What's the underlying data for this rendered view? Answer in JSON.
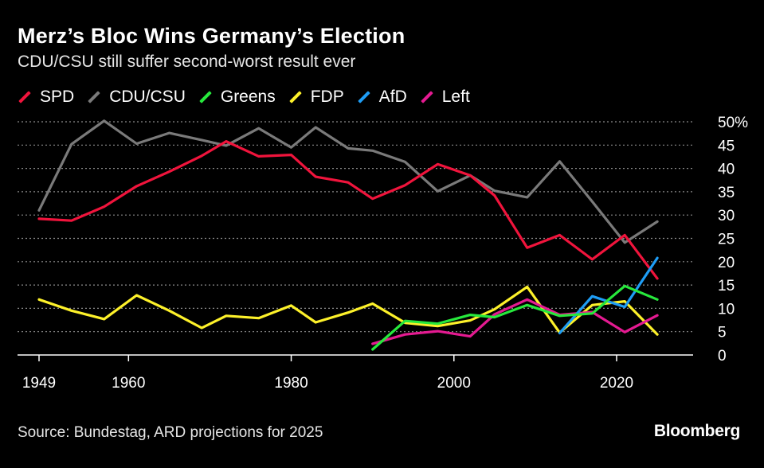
{
  "header": {
    "title": "Merz’s Bloc Wins Germany’s Election",
    "subtitle": "CDU/CSU still suffer second-worst result ever"
  },
  "footer": {
    "source": "Source: Bundestag, ARD projections for 2025",
    "brand": "Bloomberg"
  },
  "colors": {
    "background": "#000000",
    "grid": "#8a8a8a",
    "SPD": "#f0143c",
    "CDU/CSU": "#7a7a7a",
    "Greens": "#27e83c",
    "FDP": "#fdf12a",
    "AfD": "#1e9df5",
    "Left": "#e41a91"
  },
  "chart_data": {
    "type": "line",
    "title": "Merz’s Bloc Wins Germany’s Election",
    "subtitle": "CDU/CSU still suffer second-worst result ever",
    "xlabel": "",
    "ylabel": "",
    "xlim": [
      1949,
      2027
    ],
    "ylim": [
      0,
      50
    ],
    "x_ticks": [
      "1949",
      "1960",
      "1980",
      "2000",
      "2020"
    ],
    "y_ticks": [
      "0",
      "5",
      "10",
      "15",
      "20",
      "25",
      "30",
      "35",
      "40",
      "45",
      "50%"
    ],
    "grid": true,
    "legend_position": "top-left",
    "series": [
      {
        "name": "SPD",
        "color": "#f0143c",
        "points": [
          [
            1949,
            29.2
          ],
          [
            1953,
            28.8
          ],
          [
            1957,
            31.8
          ],
          [
            1961,
            36.2
          ],
          [
            1965,
            39.3
          ],
          [
            1969,
            42.7
          ],
          [
            1972,
            45.8
          ],
          [
            1976,
            42.6
          ],
          [
            1980,
            42.9
          ],
          [
            1983,
            38.2
          ],
          [
            1987,
            37.0
          ],
          [
            1990,
            33.5
          ],
          [
            1994,
            36.4
          ],
          [
            1998,
            40.9
          ],
          [
            2002,
            38.5
          ],
          [
            2005,
            34.2
          ],
          [
            2009,
            23.0
          ],
          [
            2013,
            25.7
          ],
          [
            2017,
            20.5
          ],
          [
            2021,
            25.7
          ],
          [
            2025,
            16.4
          ]
        ]
      },
      {
        "name": "CDU/CSU",
        "color": "#7a7a7a",
        "points": [
          [
            1949,
            31.0
          ],
          [
            1953,
            45.2
          ],
          [
            1957,
            50.2
          ],
          [
            1961,
            45.3
          ],
          [
            1965,
            47.6
          ],
          [
            1969,
            46.1
          ],
          [
            1972,
            44.9
          ],
          [
            1976,
            48.6
          ],
          [
            1980,
            44.5
          ],
          [
            1983,
            48.8
          ],
          [
            1987,
            44.3
          ],
          [
            1990,
            43.8
          ],
          [
            1994,
            41.4
          ],
          [
            1998,
            35.1
          ],
          [
            2002,
            38.5
          ],
          [
            2005,
            35.2
          ],
          [
            2009,
            33.8
          ],
          [
            2013,
            41.5
          ],
          [
            2017,
            32.9
          ],
          [
            2021,
            24.1
          ],
          [
            2025,
            28.6
          ]
        ]
      },
      {
        "name": "Greens",
        "color": "#27e83c",
        "points": [
          [
            1990,
            1.2
          ],
          [
            1994,
            7.3
          ],
          [
            1998,
            6.7
          ],
          [
            2002,
            8.6
          ],
          [
            2005,
            8.1
          ],
          [
            2009,
            10.7
          ],
          [
            2013,
            8.4
          ],
          [
            2017,
            8.9
          ],
          [
            2021,
            14.8
          ],
          [
            2025,
            11.9
          ]
        ]
      },
      {
        "name": "FDP",
        "color": "#fdf12a",
        "points": [
          [
            1949,
            11.9
          ],
          [
            1953,
            9.5
          ],
          [
            1957,
            7.7
          ],
          [
            1961,
            12.8
          ],
          [
            1965,
            9.5
          ],
          [
            1969,
            5.8
          ],
          [
            1972,
            8.4
          ],
          [
            1976,
            7.9
          ],
          [
            1980,
            10.6
          ],
          [
            1983,
            7.0
          ],
          [
            1987,
            9.1
          ],
          [
            1990,
            11.0
          ],
          [
            1994,
            6.9
          ],
          [
            1998,
            6.2
          ],
          [
            2002,
            7.4
          ],
          [
            2005,
            9.8
          ],
          [
            2009,
            14.6
          ],
          [
            2013,
            4.8
          ],
          [
            2017,
            10.7
          ],
          [
            2021,
            11.5
          ],
          [
            2025,
            4.4
          ]
        ]
      },
      {
        "name": "AfD",
        "color": "#1e9df5",
        "points": [
          [
            2013,
            4.7
          ],
          [
            2017,
            12.6
          ],
          [
            2021,
            10.3
          ],
          [
            2025,
            20.8
          ]
        ]
      },
      {
        "name": "Left",
        "color": "#e41a91",
        "points": [
          [
            1990,
            2.4
          ],
          [
            1994,
            4.4
          ],
          [
            1998,
            5.1
          ],
          [
            2002,
            4.0
          ],
          [
            2005,
            8.7
          ],
          [
            2009,
            11.9
          ],
          [
            2013,
            8.6
          ],
          [
            2017,
            9.2
          ],
          [
            2021,
            4.9
          ],
          [
            2025,
            8.5
          ]
        ]
      }
    ]
  }
}
